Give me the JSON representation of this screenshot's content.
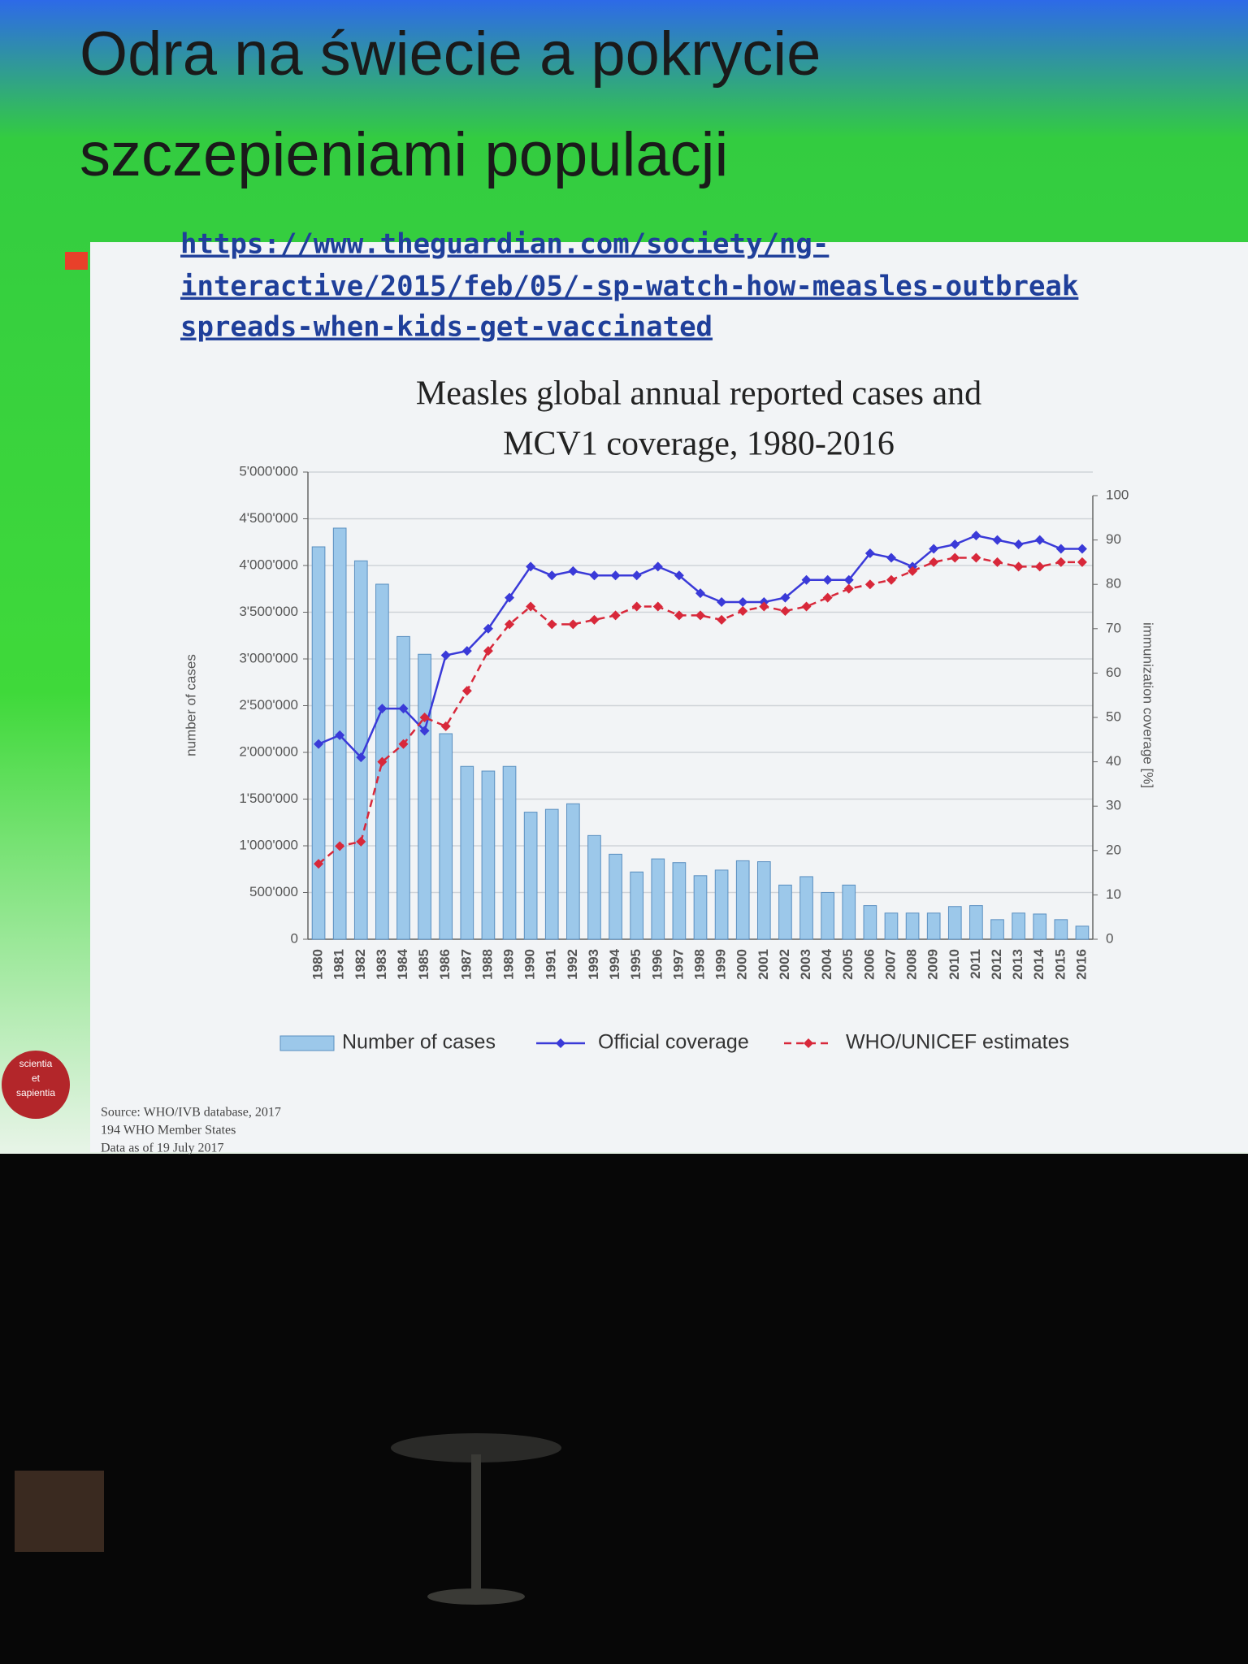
{
  "slide": {
    "title": [
      "Odra na świecie a pokrycie",
      "szczepieniami populacji"
    ],
    "link": [
      "https://www.theguardian.com/society/ng-",
      "interactive/2015/feb/05/-sp-watch-how-measles-outbreak",
      "spreads-when-kids-get-vaccinated"
    ],
    "logo": [
      "scientia",
      "et",
      "sapientia"
    ],
    "source": [
      "Source: WHO/IVB database, 2017",
      "194 WHO Member States",
      "Data as of 19 July 2017"
    ]
  },
  "chart_data": {
    "type": "bar",
    "title": [
      "Measles global annual reported cases and",
      "MCV1 coverage, 1980-2016"
    ],
    "y_label": "number of cases",
    "y2_label": "immunization coverage [%]",
    "categories": [
      "1980",
      "1981",
      "1982",
      "1983",
      "1984",
      "1985",
      "1986",
      "1987",
      "1988",
      "1989",
      "1990",
      "1991",
      "1992",
      "1993",
      "1994",
      "1995",
      "1996",
      "1997",
      "1998",
      "1999",
      "2000",
      "2001",
      "2002",
      "2003",
      "2004",
      "2005",
      "2006",
      "2007",
      "2008",
      "2009",
      "2010",
      "2011",
      "2012",
      "2013",
      "2014",
      "2015",
      "2016"
    ],
    "series": [
      {
        "name": "Number of cases",
        "type": "bar",
        "color": "#9cc8ea",
        "values": [
          4200000,
          4400000,
          4050000,
          3800000,
          3240000,
          3050000,
          2200000,
          1850000,
          1800000,
          1850000,
          1360000,
          1390000,
          1450000,
          1110000,
          910000,
          720000,
          860000,
          820000,
          680000,
          740000,
          840000,
          830000,
          580000,
          670000,
          500000,
          580000,
          360000,
          280000,
          280000,
          280000,
          350000,
          360000,
          210000,
          280000,
          270000,
          210000,
          140000
        ]
      },
      {
        "name": "Official coverage",
        "type": "line",
        "axis": "y2",
        "color": "#3a3ad8",
        "line_style": "solid",
        "values": [
          44,
          46,
          41,
          52,
          52,
          47,
          64,
          65,
          70,
          77,
          84,
          82,
          83,
          82,
          82,
          82,
          84,
          82,
          78,
          76,
          76,
          76,
          77,
          81,
          81,
          81,
          87,
          86,
          84,
          88,
          89,
          91,
          90,
          89,
          90,
          88,
          88
        ]
      },
      {
        "name": "WHO/UNICEF estimates",
        "type": "line",
        "axis": "y2",
        "color": "#d8283a",
        "line_style": "dashed",
        "values": [
          17,
          21,
          22,
          40,
          44,
          50,
          48,
          56,
          65,
          71,
          75,
          71,
          71,
          72,
          73,
          75,
          75,
          73,
          73,
          72,
          74,
          75,
          74,
          75,
          77,
          79,
          80,
          81,
          83,
          85,
          86,
          86,
          85,
          84,
          84,
          85,
          85
        ]
      }
    ],
    "ylim": [
      0,
      5000000
    ],
    "yticks": [
      0,
      {
        "value": 500000,
        "label": "500'000"
      },
      {
        "value": 1000000,
        "label": "1'000'000"
      },
      {
        "value": 1500000,
        "label": "1'500'000"
      },
      {
        "value": 2000000,
        "label": "2'000'000"
      },
      {
        "value": 2500000,
        "label": "2'500'000"
      },
      {
        "value": 3000000,
        "label": "3'000'000"
      },
      {
        "value": 3500000,
        "label": "3'500'000"
      },
      {
        "value": 4000000,
        "label": "4'000'000"
      },
      {
        "value": 4500000,
        "label": "4'500'000"
      },
      {
        "value": 5000000,
        "label": "5'000'000"
      }
    ],
    "y2lim": [
      0,
      100
    ],
    "y2ticks": [
      0,
      10,
      20,
      30,
      40,
      50,
      60,
      70,
      80,
      90,
      100
    ],
    "grid": true,
    "legend": "bottom"
  }
}
